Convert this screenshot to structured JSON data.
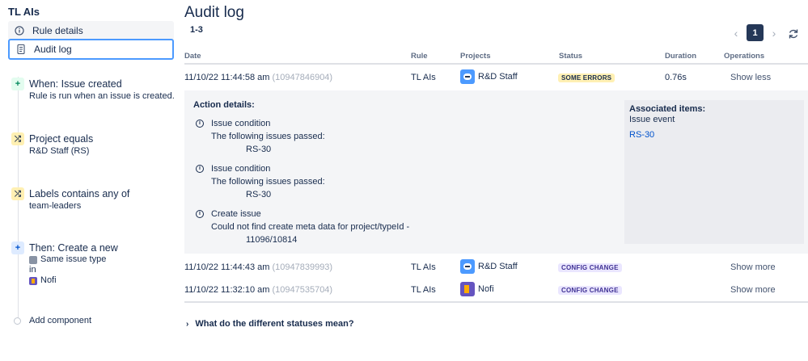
{
  "sidebar": {
    "rule_title": "TL AIs",
    "nav": [
      {
        "label": "Rule details",
        "icon": "info-icon"
      },
      {
        "label": "Audit log",
        "icon": "document-icon"
      }
    ],
    "steps": [
      {
        "icon": "+",
        "title": "When: Issue created",
        "desc": "Rule is run when an issue is created."
      },
      {
        "icon": "⤮",
        "title": "Project equals",
        "desc": "R&D Staff (RS)"
      },
      {
        "icon": "⤮",
        "title": "Labels contains any of",
        "desc": "team-leaders"
      },
      {
        "icon": "+",
        "title": "Then: Create a new",
        "line1": "Same issue type",
        "line2": "in",
        "line3": "Nofi"
      }
    ],
    "add_component": "Add component"
  },
  "main": {
    "title": "Audit log",
    "range": "1-3",
    "page": "1",
    "columns": [
      "Date",
      "Rule",
      "Projects",
      "Status",
      "Duration",
      "Operations"
    ],
    "rows": [
      {
        "date": "11/10/22 11:44:58 am",
        "id": "(10947846904)",
        "rule": "TL AIs",
        "project": "R&D Staff",
        "status": "SOME ERRORS",
        "duration": "0.76s",
        "op": "Show less"
      },
      {
        "date": "11/10/22 11:44:43 am",
        "id": "(10947839993)",
        "rule": "TL AIs",
        "project": "R&D Staff",
        "status": "CONFIG CHANGE",
        "duration": "",
        "op": "Show more"
      },
      {
        "date": "11/10/22 11:32:10 am",
        "id": "(10947535704)",
        "rule": "TL AIs",
        "project": "Nofi",
        "status": "CONFIG CHANGE",
        "duration": "",
        "op": "Show more"
      }
    ],
    "details": {
      "title": "Action details:",
      "actions": [
        {
          "name": "Issue condition",
          "msg": "The following issues passed:",
          "value": "RS-30"
        },
        {
          "name": "Issue condition",
          "msg": "The following issues passed:",
          "value": "RS-30"
        },
        {
          "name": "Create issue",
          "msg": "Could not find create meta data for project/typeId -",
          "value": "11096/10814"
        }
      ],
      "assoc_title": "Associated items:",
      "assoc_sub": "Issue event",
      "assoc_link": "RS-30"
    },
    "faq": "What do the different statuses mean?"
  }
}
